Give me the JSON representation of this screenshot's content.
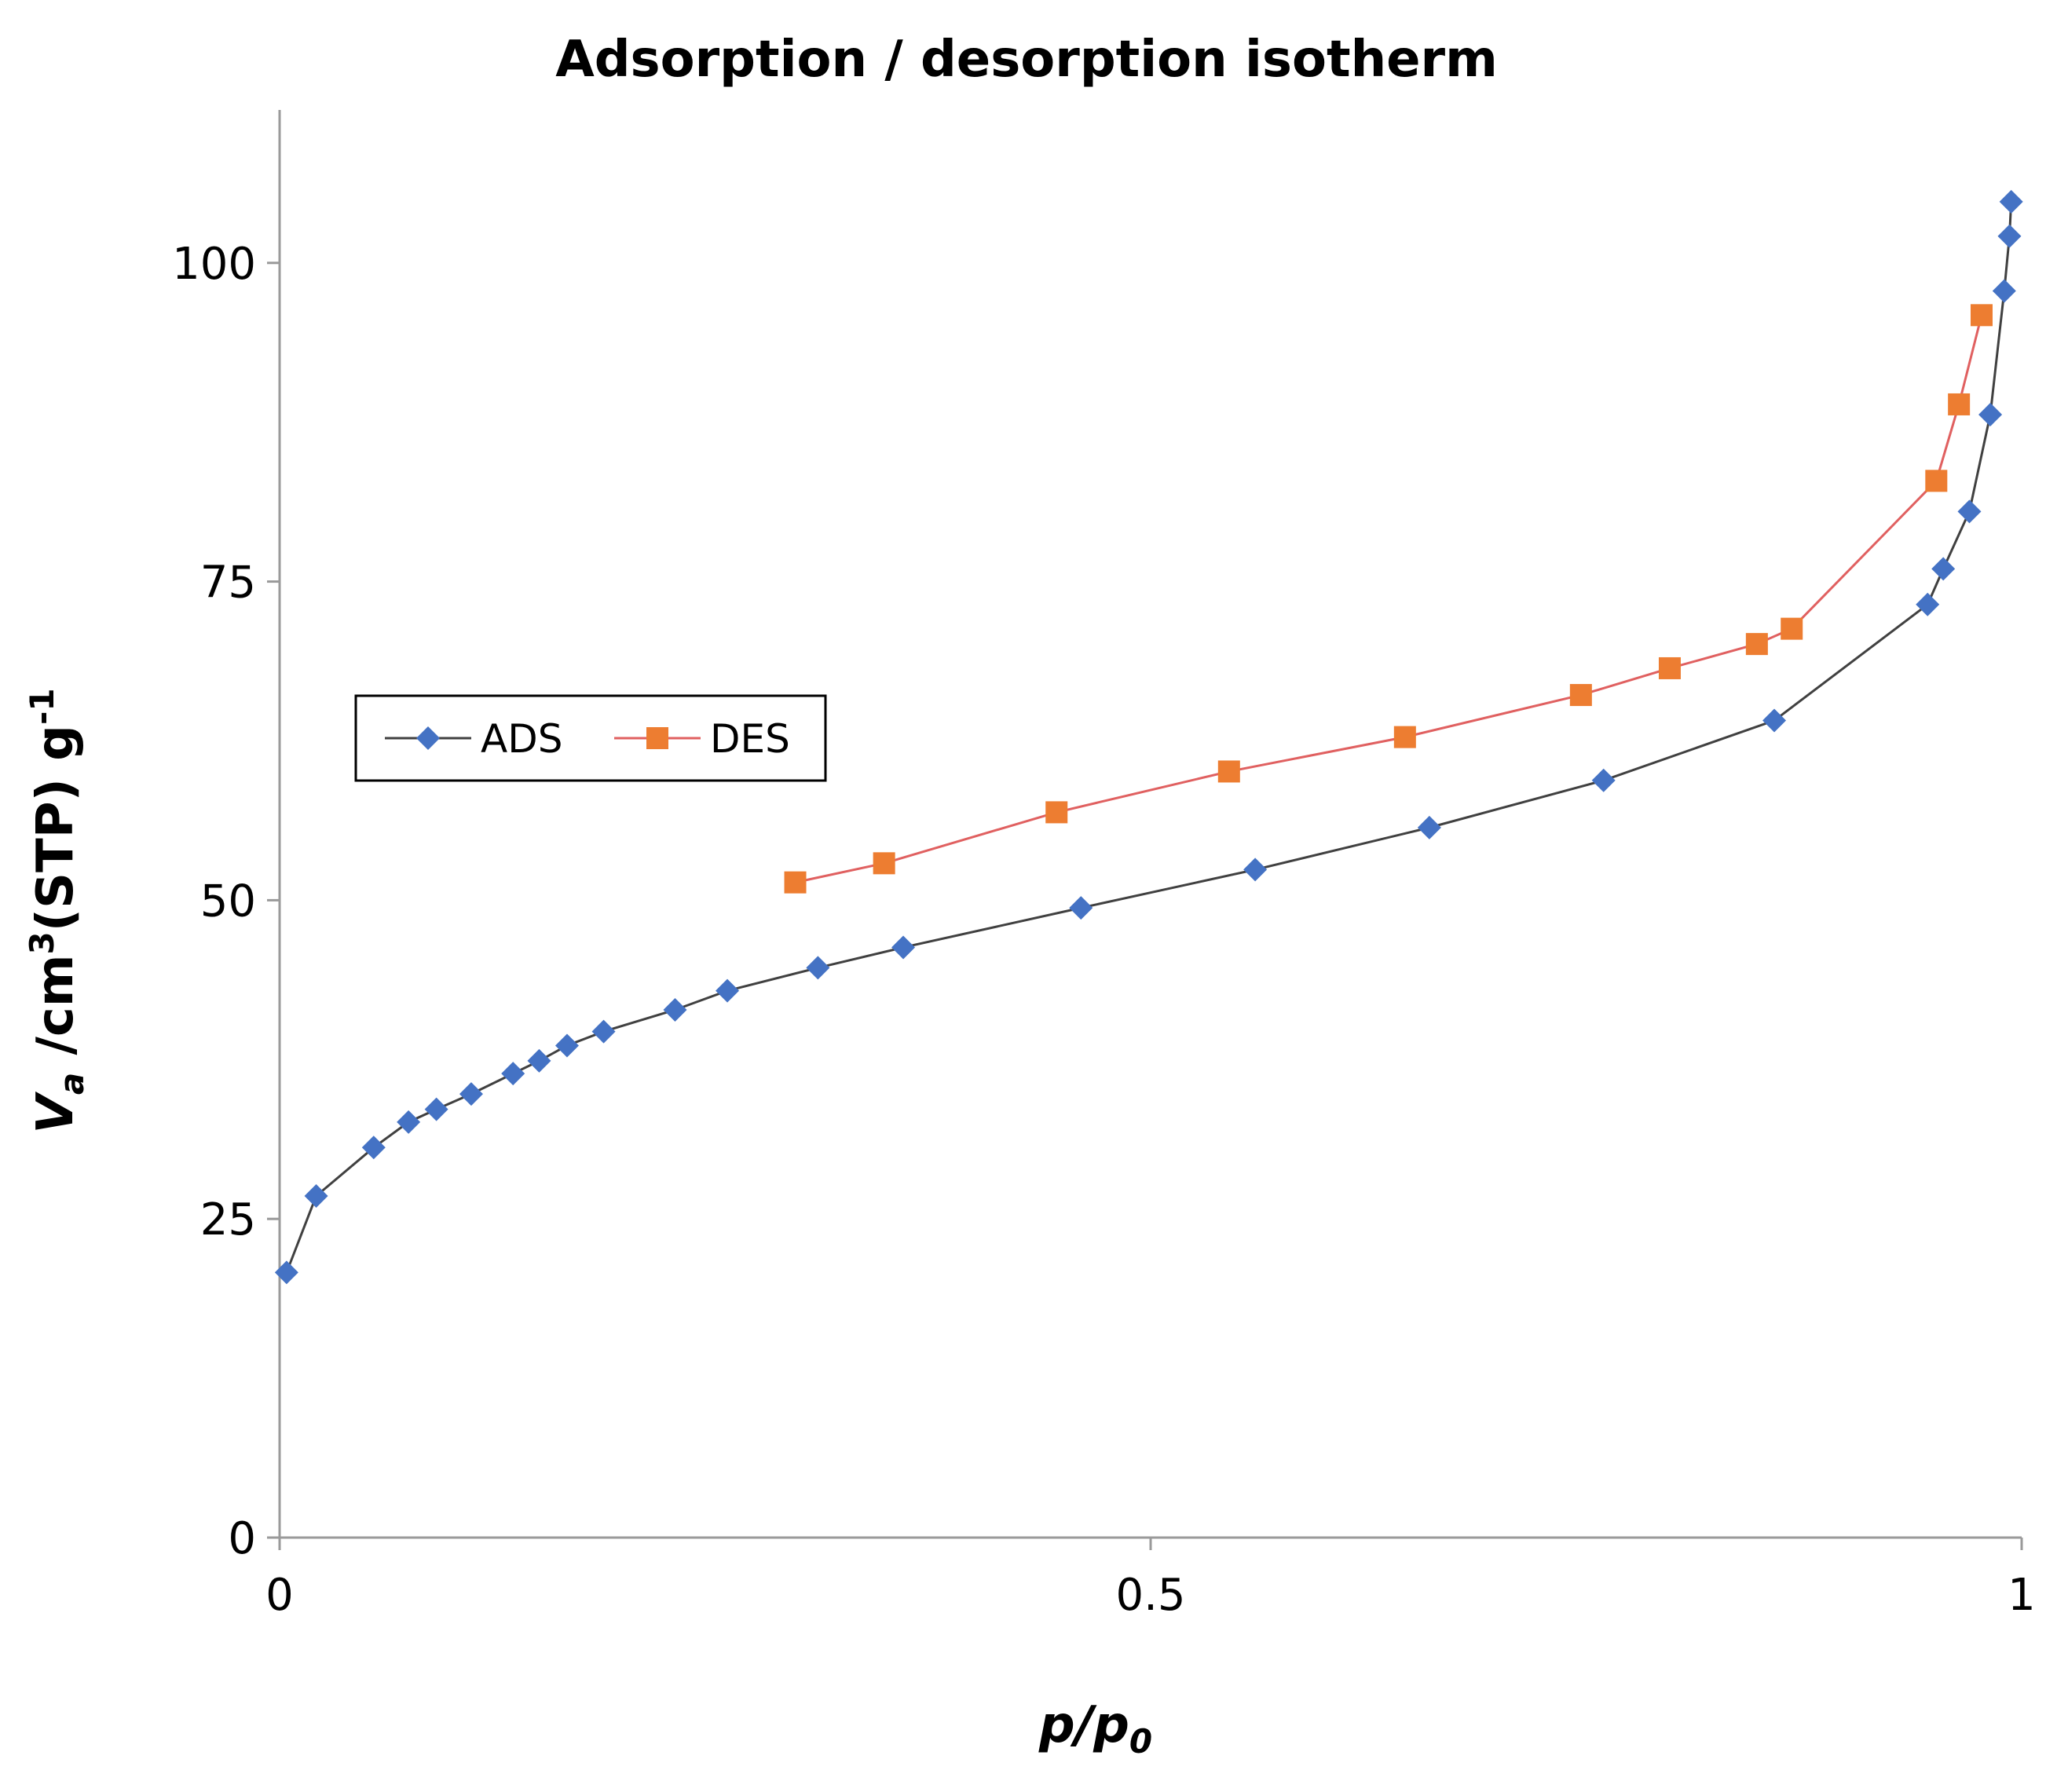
{
  "chart_data": {
    "type": "line",
    "title": "Adsorption / desorption isotherm",
    "xlabel": {
      "italic_p": "p",
      "slash": "/",
      "italic_p2": "p",
      "sub": "0"
    },
    "ylabel": {
      "italic_v": "V",
      "sub_a": "a",
      "unit_pre": " /cm",
      "sup_3": "3",
      "unit_mid": "(STP) g",
      "sup_minus1": "-1"
    },
    "xlim": [
      0,
      1
    ],
    "ylim": [
      0,
      112
    ],
    "xticks": [
      0,
      0.5,
      1
    ],
    "xtick_labels": [
      "0",
      "0.5",
      "1"
    ],
    "yticks": [
      0,
      25,
      50,
      75,
      100
    ],
    "ytick_labels": [
      "0",
      "25",
      "50",
      "75",
      "100"
    ],
    "grid": false,
    "legend_position": "left",
    "series": [
      {
        "name": "ADS",
        "color": "#4472C4",
        "line_color": "#404040",
        "marker": "diamond",
        "x": [
          0.004,
          0.021,
          0.054,
          0.074,
          0.09,
          0.11,
          0.134,
          0.149,
          0.165,
          0.186,
          0.227,
          0.257,
          0.309,
          0.358,
          0.46,
          0.56,
          0.66,
          0.76,
          0.858,
          0.946,
          0.955,
          0.97,
          0.982,
          0.99,
          0.993,
          0.994
        ],
        "y": [
          20.8,
          26.8,
          30.6,
          32.6,
          33.6,
          34.8,
          36.4,
          37.4,
          38.6,
          39.7,
          41.4,
          42.9,
          44.7,
          46.3,
          49.4,
          52.4,
          55.7,
          59.4,
          64.1,
          73.2,
          76,
          80.5,
          88.1,
          97.8,
          102.1,
          104.8
        ]
      },
      {
        "name": "DES",
        "color": "#ED7D31",
        "line_color": "#E06060",
        "marker": "square",
        "x": [
          0.296,
          0.347,
          0.446,
          0.545,
          0.646,
          0.747,
          0.798,
          0.848,
          0.868,
          0.951,
          0.964,
          0.977
        ],
        "y": [
          51.4,
          52.9,
          56.9,
          60.1,
          62.8,
          66.1,
          68.2,
          70.1,
          71.3,
          82.9,
          88.9,
          95.9
        ]
      }
    ]
  }
}
